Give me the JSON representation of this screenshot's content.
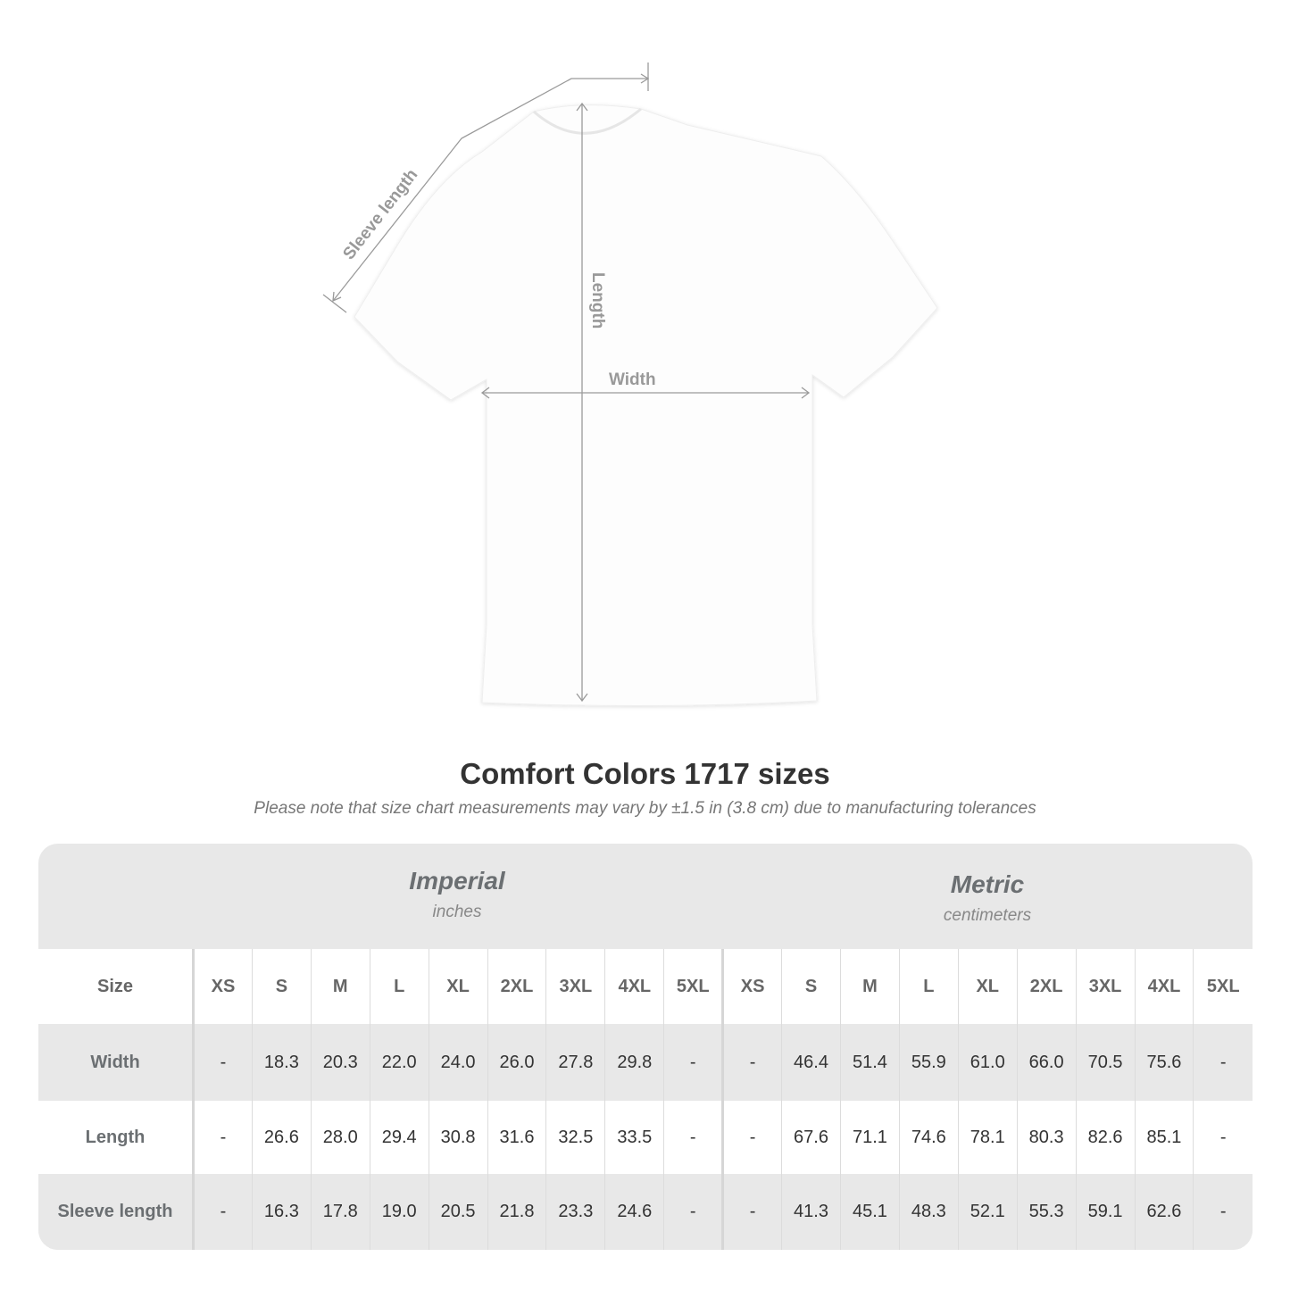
{
  "diagram": {
    "labels": {
      "sleeve": "Sleeve length",
      "length": "Length",
      "width": "Width"
    },
    "line_color": "#9a9a9a"
  },
  "title": "Comfort Colors 1717 sizes",
  "note": "Please note that size chart measurements may vary by ±1.5 in (3.8 cm) due to manufacturing tolerances",
  "table": {
    "imperial": {
      "label": "Imperial",
      "unit": "inches"
    },
    "metric": {
      "label": "Metric",
      "unit": "centimeters"
    },
    "size_label": "Size",
    "sizes": [
      "XS",
      "S",
      "M",
      "L",
      "XL",
      "2XL",
      "3XL",
      "4XL",
      "5XL"
    ],
    "rows": [
      {
        "label": "Width",
        "imperial": [
          "-",
          "18.3",
          "20.3",
          "22.0",
          "24.0",
          "26.0",
          "27.8",
          "29.8",
          "-"
        ],
        "metric": [
          "-",
          "46.4",
          "51.4",
          "55.9",
          "61.0",
          "66.0",
          "70.5",
          "75.6",
          "-"
        ]
      },
      {
        "label": "Length",
        "imperial": [
          "-",
          "26.6",
          "28.0",
          "29.4",
          "30.8",
          "31.6",
          "32.5",
          "33.5",
          "-"
        ],
        "metric": [
          "-",
          "67.6",
          "71.1",
          "74.6",
          "78.1",
          "80.3",
          "82.6",
          "85.1",
          "-"
        ]
      },
      {
        "label": "Sleeve length",
        "imperial": [
          "-",
          "16.3",
          "17.8",
          "19.0",
          "20.5",
          "21.8",
          "23.3",
          "24.6",
          "-"
        ],
        "metric": [
          "-",
          "41.3",
          "45.1",
          "48.3",
          "52.1",
          "55.3",
          "59.1",
          "62.6",
          "-"
        ]
      }
    ]
  }
}
